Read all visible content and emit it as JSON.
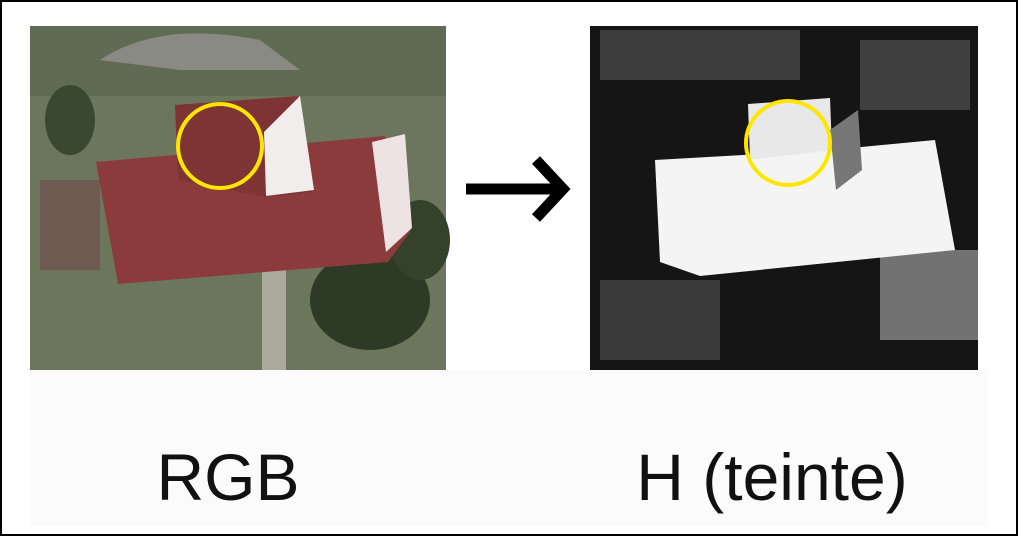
{
  "labels": {
    "left": "RGB",
    "right": "H (teinte)"
  }
}
